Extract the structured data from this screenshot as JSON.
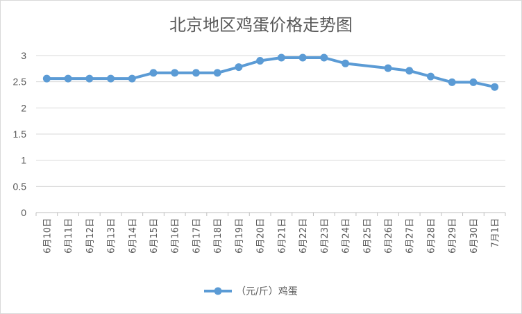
{
  "chart_data": {
    "type": "line",
    "title": "北京地区鸡蛋价格走势图",
    "categories": [
      "6月10日",
      "6月11日",
      "6月12日",
      "6月13日",
      "6月14日",
      "6月15日",
      "6月16日",
      "6月17日",
      "6月18日",
      "6月19日",
      "6月20日",
      "6月21日",
      "6月22日",
      "6月23日",
      "6月24日",
      "6月25日",
      "6月26日",
      "6月27日",
      "6月28日",
      "6月29日",
      "6月30日",
      "7月1日"
    ],
    "series": [
      {
        "name": "（元/斤）鸡蛋",
        "color": "#5b9bd5",
        "values": [
          2.56,
          2.56,
          2.56,
          2.56,
          2.56,
          2.67,
          2.67,
          2.67,
          2.67,
          2.78,
          2.9,
          2.96,
          2.96,
          2.96,
          2.85,
          null,
          2.76,
          2.71,
          2.6,
          2.49,
          2.49,
          2.4
        ]
      }
    ],
    "yticks": [
      "0",
      "0.5",
      "1",
      "1.5",
      "2",
      "2.5",
      "3"
    ],
    "ylim": [
      0,
      3
    ],
    "grid": true,
    "legend_position": "bottom",
    "xlabel": "",
    "ylabel": ""
  }
}
